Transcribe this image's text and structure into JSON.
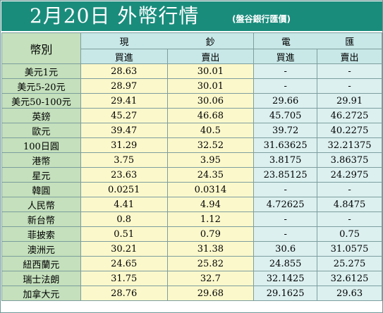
{
  "title": {
    "main": "2月20日 外幣行情",
    "bank": "(盤谷銀行匯價)"
  },
  "header": {
    "currency_label": "幣別",
    "cash": [
      "現",
      "鈔"
    ],
    "telegraphic": [
      "電",
      "匯"
    ],
    "buy": "買進",
    "sell": "賣出"
  },
  "rows": [
    {
      "currency": "美元1元",
      "cash_buy": "28.63",
      "cash_sell": "30.01",
      "tt_buy": "-",
      "tt_sell": "-"
    },
    {
      "currency": "美元5-20元",
      "cash_buy": "28.97",
      "cash_sell": "30.01",
      "tt_buy": "-",
      "tt_sell": "-"
    },
    {
      "currency": "美元50-100元",
      "cash_buy": "29.41",
      "cash_sell": "30.06",
      "tt_buy": "29.66",
      "tt_sell": "29.91"
    },
    {
      "currency": "英鎊",
      "cash_buy": "45.27",
      "cash_sell": "46.68",
      "tt_buy": "45.705",
      "tt_sell": "46.2725"
    },
    {
      "currency": "歐元",
      "cash_buy": "39.47",
      "cash_sell": "40.5",
      "tt_buy": "39.72",
      "tt_sell": "40.2275"
    },
    {
      "currency": "100日圓",
      "cash_buy": "31.29",
      "cash_sell": "32.52",
      "tt_buy": "31.63625",
      "tt_sell": "32.21375"
    },
    {
      "currency": "港幣",
      "cash_buy": "3.75",
      "cash_sell": "3.95",
      "tt_buy": "3.8175",
      "tt_sell": "3.86375"
    },
    {
      "currency": "星元",
      "cash_buy": "23.63",
      "cash_sell": "24.35",
      "tt_buy": "23.85125",
      "tt_sell": "24.2975"
    },
    {
      "currency": "韓圓",
      "cash_buy": "0.0251",
      "cash_sell": "0.0314",
      "tt_buy": "-",
      "tt_sell": "-"
    },
    {
      "currency": "人民幣",
      "cash_buy": "4.41",
      "cash_sell": "4.94",
      "tt_buy": "4.72625",
      "tt_sell": "4.8475"
    },
    {
      "currency": "新台幣",
      "cash_buy": "0.8",
      "cash_sell": "1.12",
      "tt_buy": "-",
      "tt_sell": "-"
    },
    {
      "currency": "菲披索",
      "cash_buy": "0.51",
      "cash_sell": "0.79",
      "tt_buy": "-",
      "tt_sell": "0.75"
    },
    {
      "currency": "澳洲元",
      "cash_buy": "30.21",
      "cash_sell": "31.38",
      "tt_buy": "30.6",
      "tt_sell": "31.0575"
    },
    {
      "currency": "紐西蘭元",
      "cash_buy": "24.65",
      "cash_sell": "25.82",
      "tt_buy": "24.855",
      "tt_sell": "25.275"
    },
    {
      "currency": "瑞士法朗",
      "cash_buy": "31.75",
      "cash_sell": "32.7",
      "tt_buy": "32.1425",
      "tt_sell": "32.6125"
    },
    {
      "currency": "加拿大元",
      "cash_buy": "28.76",
      "cash_sell": "29.68",
      "tt_buy": "29.1625",
      "tt_sell": "29.63"
    }
  ],
  "colors": {
    "title_bar": "#1a8c7c",
    "currency_column": "#c4e0bc",
    "cash_columns": "#fbf8cb",
    "telegraphic_columns": "#dcf0f0",
    "header_cells": "#c8e8e8"
  }
}
